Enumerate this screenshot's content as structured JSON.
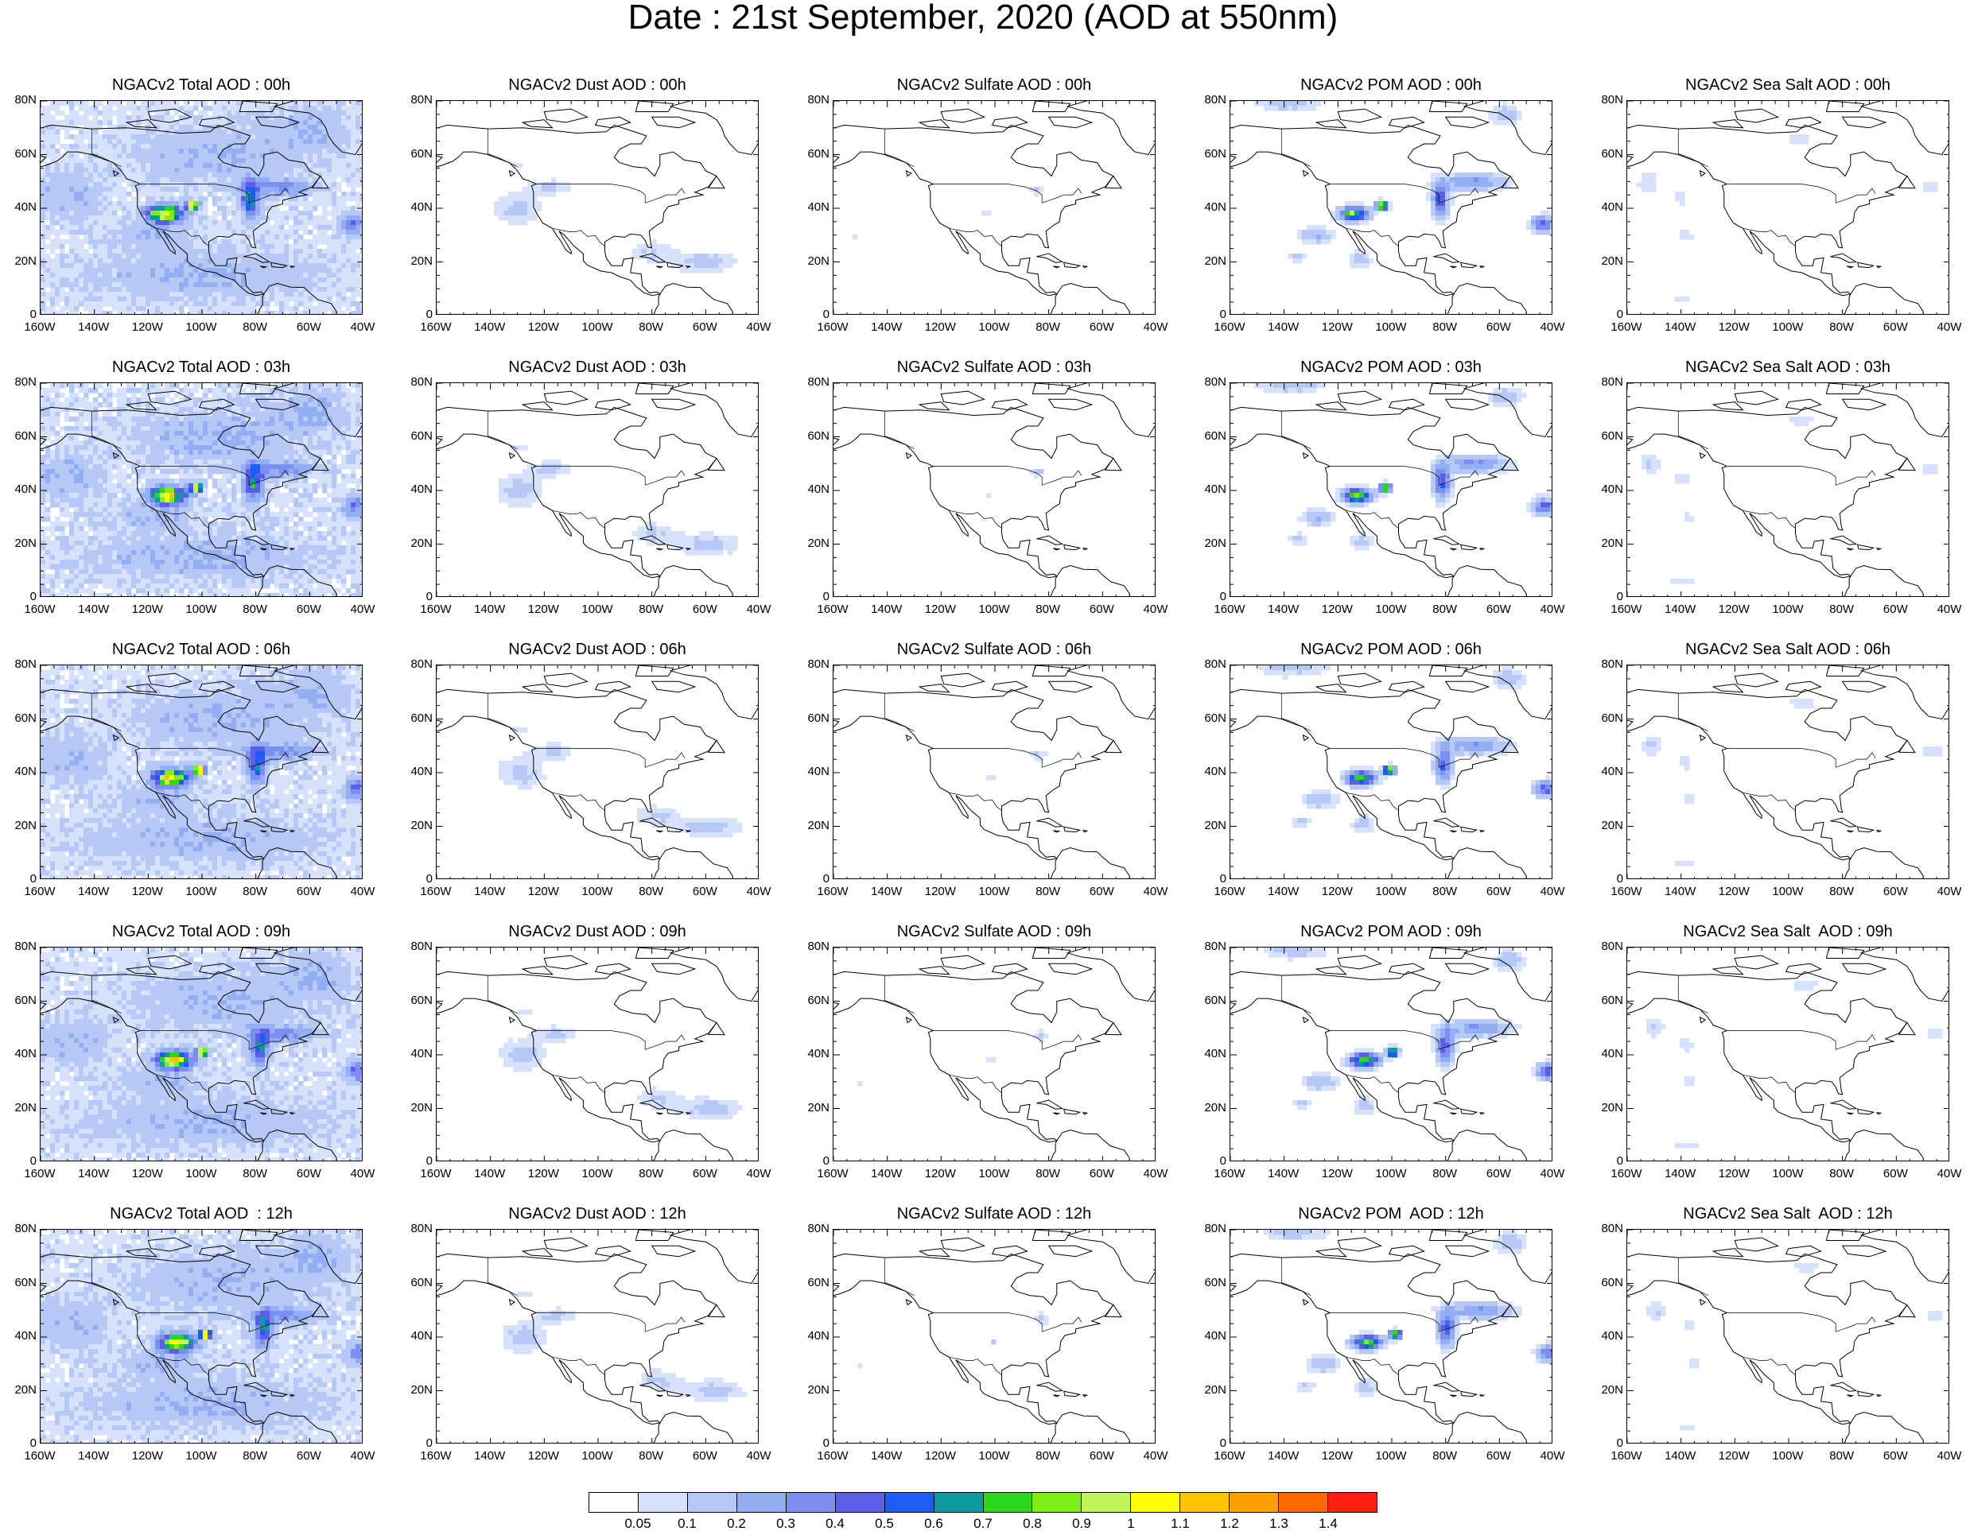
{
  "title": "Date : 21st  September, 2020 (AOD at 550nm)",
  "lat_ticks": [
    "80N",
    "60N",
    "40N",
    "20N",
    "0"
  ],
  "lon_ticks": [
    "160W",
    "140W",
    "120W",
    "100W",
    "80W",
    "60W",
    "40W"
  ],
  "species": [
    "Total",
    "Dust",
    "Sulfate",
    "POM",
    "Sea Salt"
  ],
  "times": [
    "00h",
    "03h",
    "06h",
    "09h",
    "12h"
  ],
  "panel_titles": [
    [
      "NGACv2 Total AOD : 00h",
      "NGACv2 Dust AOD : 00h",
      "NGACv2 Sulfate AOD : 00h",
      "NGACv2 POM AOD : 00h",
      "NGACv2 Sea Salt AOD : 00h"
    ],
    [
      "NGACv2 Total AOD : 03h",
      "NGACv2 Dust AOD : 03h",
      "NGACv2 Sulfate AOD : 03h",
      "NGACv2 POM AOD : 03h",
      "NGACv2 Sea Salt AOD : 03h"
    ],
    [
      "NGACv2 Total AOD : 06h",
      "NGACv2 Dust AOD : 06h",
      "NGACv2 Sulfate AOD : 06h",
      "NGACv2 POM AOD : 06h",
      "NGACv2 Sea Salt AOD : 06h"
    ],
    [
      "NGACv2 Total AOD : 09h",
      "NGACv2 Dust AOD : 09h",
      "NGACv2 Sulfate AOD : 09h",
      "NGACv2 POM AOD : 09h",
      "NGACv2 Sea Salt  AOD : 09h"
    ],
    [
      "NGACv2 Total AOD  : 12h",
      "NGACv2 Dust AOD : 12h",
      "NGACv2 Sulfate AOD : 12h",
      "NGACv2 POM  AOD : 12h",
      "NGACv2 Sea Salt  AOD : 12h"
    ]
  ],
  "map_extent": {
    "lon_min": -160,
    "lon_max": -40,
    "lat_min": 0,
    "lat_max": 80
  },
  "colorbar": {
    "labels": [
      "0.05",
      "0.1",
      "0.2",
      "0.3",
      "0.4",
      "0.5",
      "0.6",
      "0.7",
      "0.8",
      "0.9",
      "1",
      "1.1",
      "1.2",
      "1.3",
      "1.4"
    ],
    "colors": [
      "#ffffff",
      "#d6e2fb",
      "#b6c8f5",
      "#93aef3",
      "#7c8ef0",
      "#5d5ee8",
      "#1f5cf4",
      "#0f9b9e",
      "#2bd61b",
      "#7cef18",
      "#c2f55a",
      "#ffff00",
      "#ffc400",
      "#ff9e00",
      "#ff6a00",
      "#ff1f10"
    ]
  },
  "colors": {
    "land_outline": "#000000",
    "light_aod": "#d6e2fb",
    "moderate_aod": "#b6c8f5"
  }
}
